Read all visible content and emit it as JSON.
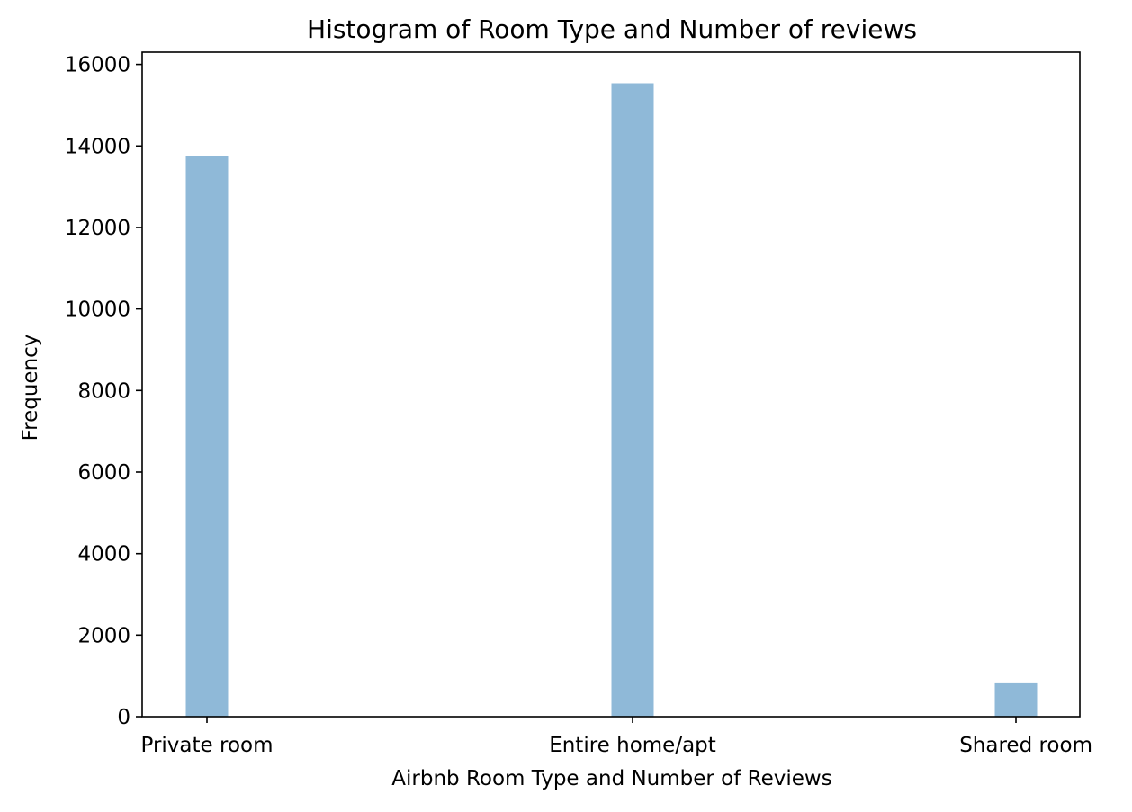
{
  "chart_data": {
    "type": "bar",
    "title": "Histogram of Room Type and Number of reviews",
    "xlabel": "Airbnb Room Type and Number of Reviews",
    "ylabel": "Frequency",
    "categories": [
      "Private room",
      "Entire home/apt",
      "Shared room"
    ],
    "values": [
      13750,
      15540,
      840
    ],
    "yticks": [
      0,
      2000,
      4000,
      6000,
      8000,
      10000,
      12000,
      14000,
      16000
    ],
    "ylim": [
      0,
      16300
    ],
    "grid": false,
    "bar_color": "#8fb9d8",
    "axis_color": "#000000"
  }
}
